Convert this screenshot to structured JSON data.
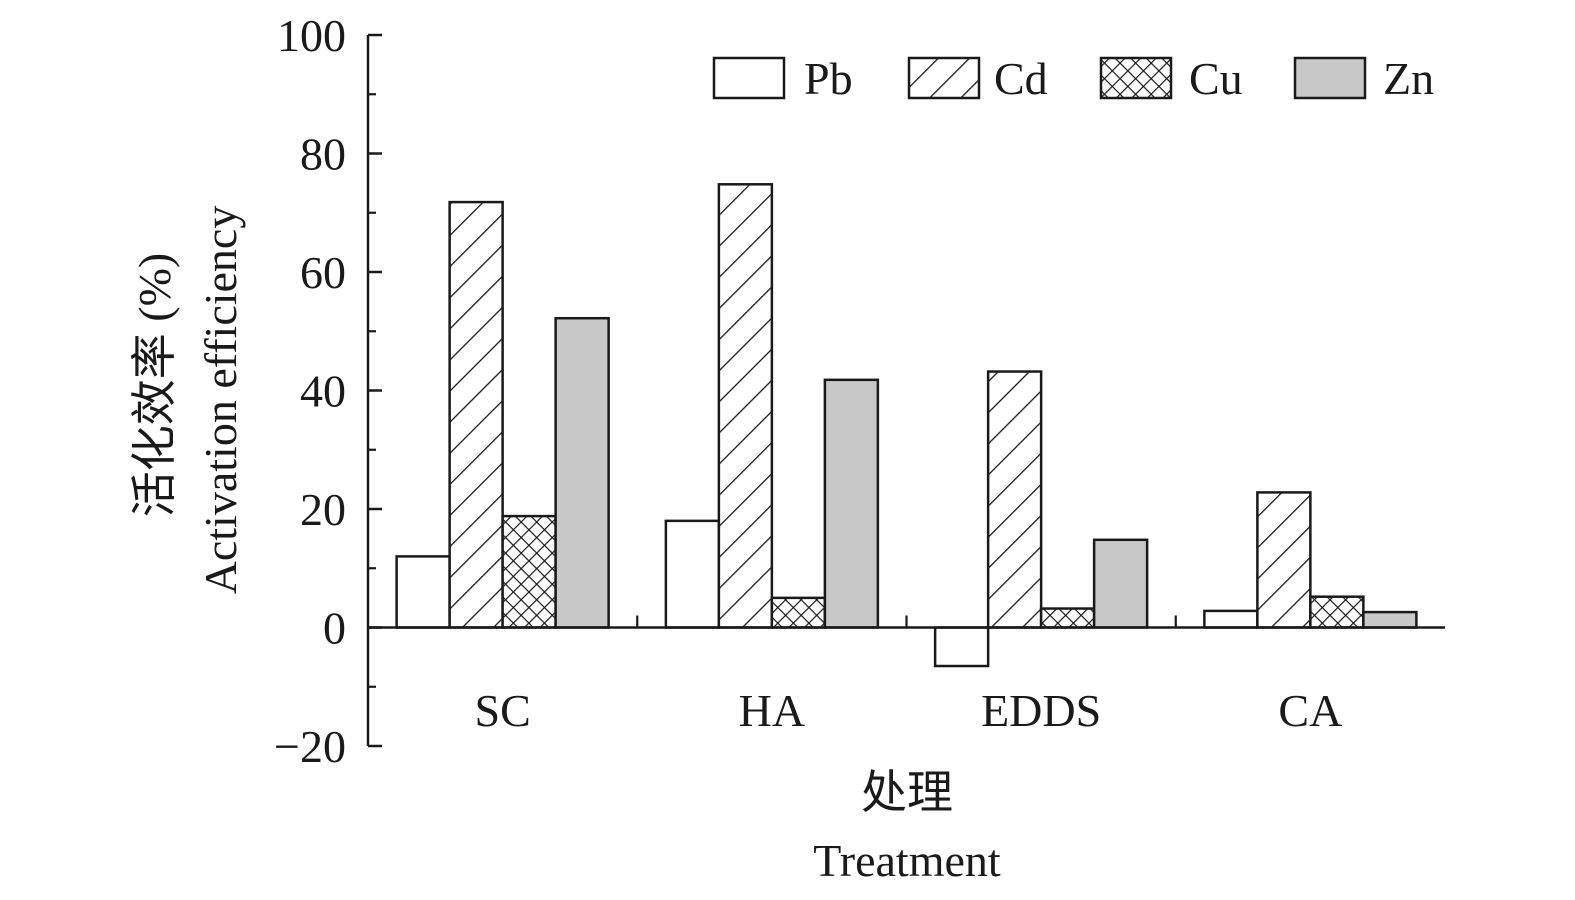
{
  "chart_data": {
    "type": "bar",
    "categories": [
      "SC",
      "HA",
      "EDDS",
      "CA"
    ],
    "series": [
      {
        "name": "Pb",
        "values": [
          12,
          18,
          -6.5,
          2.8
        ],
        "pattern": "none",
        "fill": "#ffffff"
      },
      {
        "name": "Cd",
        "values": [
          71.8,
          74.8,
          43.2,
          22.8
        ],
        "pattern": "diagonal-hatch",
        "fill": "#ffffff"
      },
      {
        "name": "Cu",
        "values": [
          18.8,
          5,
          3.2,
          5.2
        ],
        "pattern": "crosshatch",
        "fill": "#ffffff"
      },
      {
        "name": "Zn",
        "values": [
          52.2,
          41.8,
          14.8,
          2.6
        ],
        "pattern": "solid",
        "fill": "#c8c8c8"
      }
    ],
    "ylabel_cn": "活化效率 (%)",
    "ylabel_en": "Activation efficiency",
    "xlabel_cn": "处理",
    "xlabel_en": "Treatment",
    "ylim": [
      -20,
      100
    ],
    "yticks": [
      "−20",
      "0",
      "20",
      "40",
      "60",
      "80",
      "100"
    ],
    "legend_position": "top-right",
    "grid": false
  }
}
